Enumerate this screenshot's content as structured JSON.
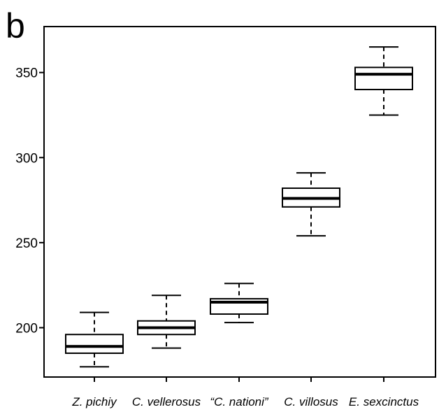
{
  "panel_label": "b",
  "chart_data": {
    "type": "box",
    "title": "",
    "xlabel": "",
    "ylabel": "",
    "ylim": [
      171,
      377
    ],
    "y_ticks": [
      200,
      250,
      300,
      350
    ],
    "grid": false,
    "categories": [
      "Z. pichiy",
      "C. vellerosus",
      "“C. nationi”",
      "C. villosus",
      "E. sexcinctus"
    ],
    "boxes": [
      {
        "category": "Z. pichiy",
        "whisker_low": 177,
        "q1": 185,
        "median": 189,
        "q3": 196,
        "whisker_high": 209
      },
      {
        "category": "C. vellerosus",
        "whisker_low": 188,
        "q1": 196,
        "median": 200,
        "q3": 204,
        "whisker_high": 219
      },
      {
        "category": "“C. nationi”",
        "whisker_low": 203,
        "q1": 208,
        "median": 215,
        "q3": 217,
        "whisker_high": 226
      },
      {
        "category": "C. villosus",
        "whisker_low": 254,
        "q1": 271,
        "median": 276,
        "q3": 282,
        "whisker_high": 291
      },
      {
        "category": "E. sexcinctus",
        "whisker_low": 325,
        "q1": 340,
        "median": 349,
        "q3": 353,
        "whisker_high": 365
      }
    ]
  }
}
